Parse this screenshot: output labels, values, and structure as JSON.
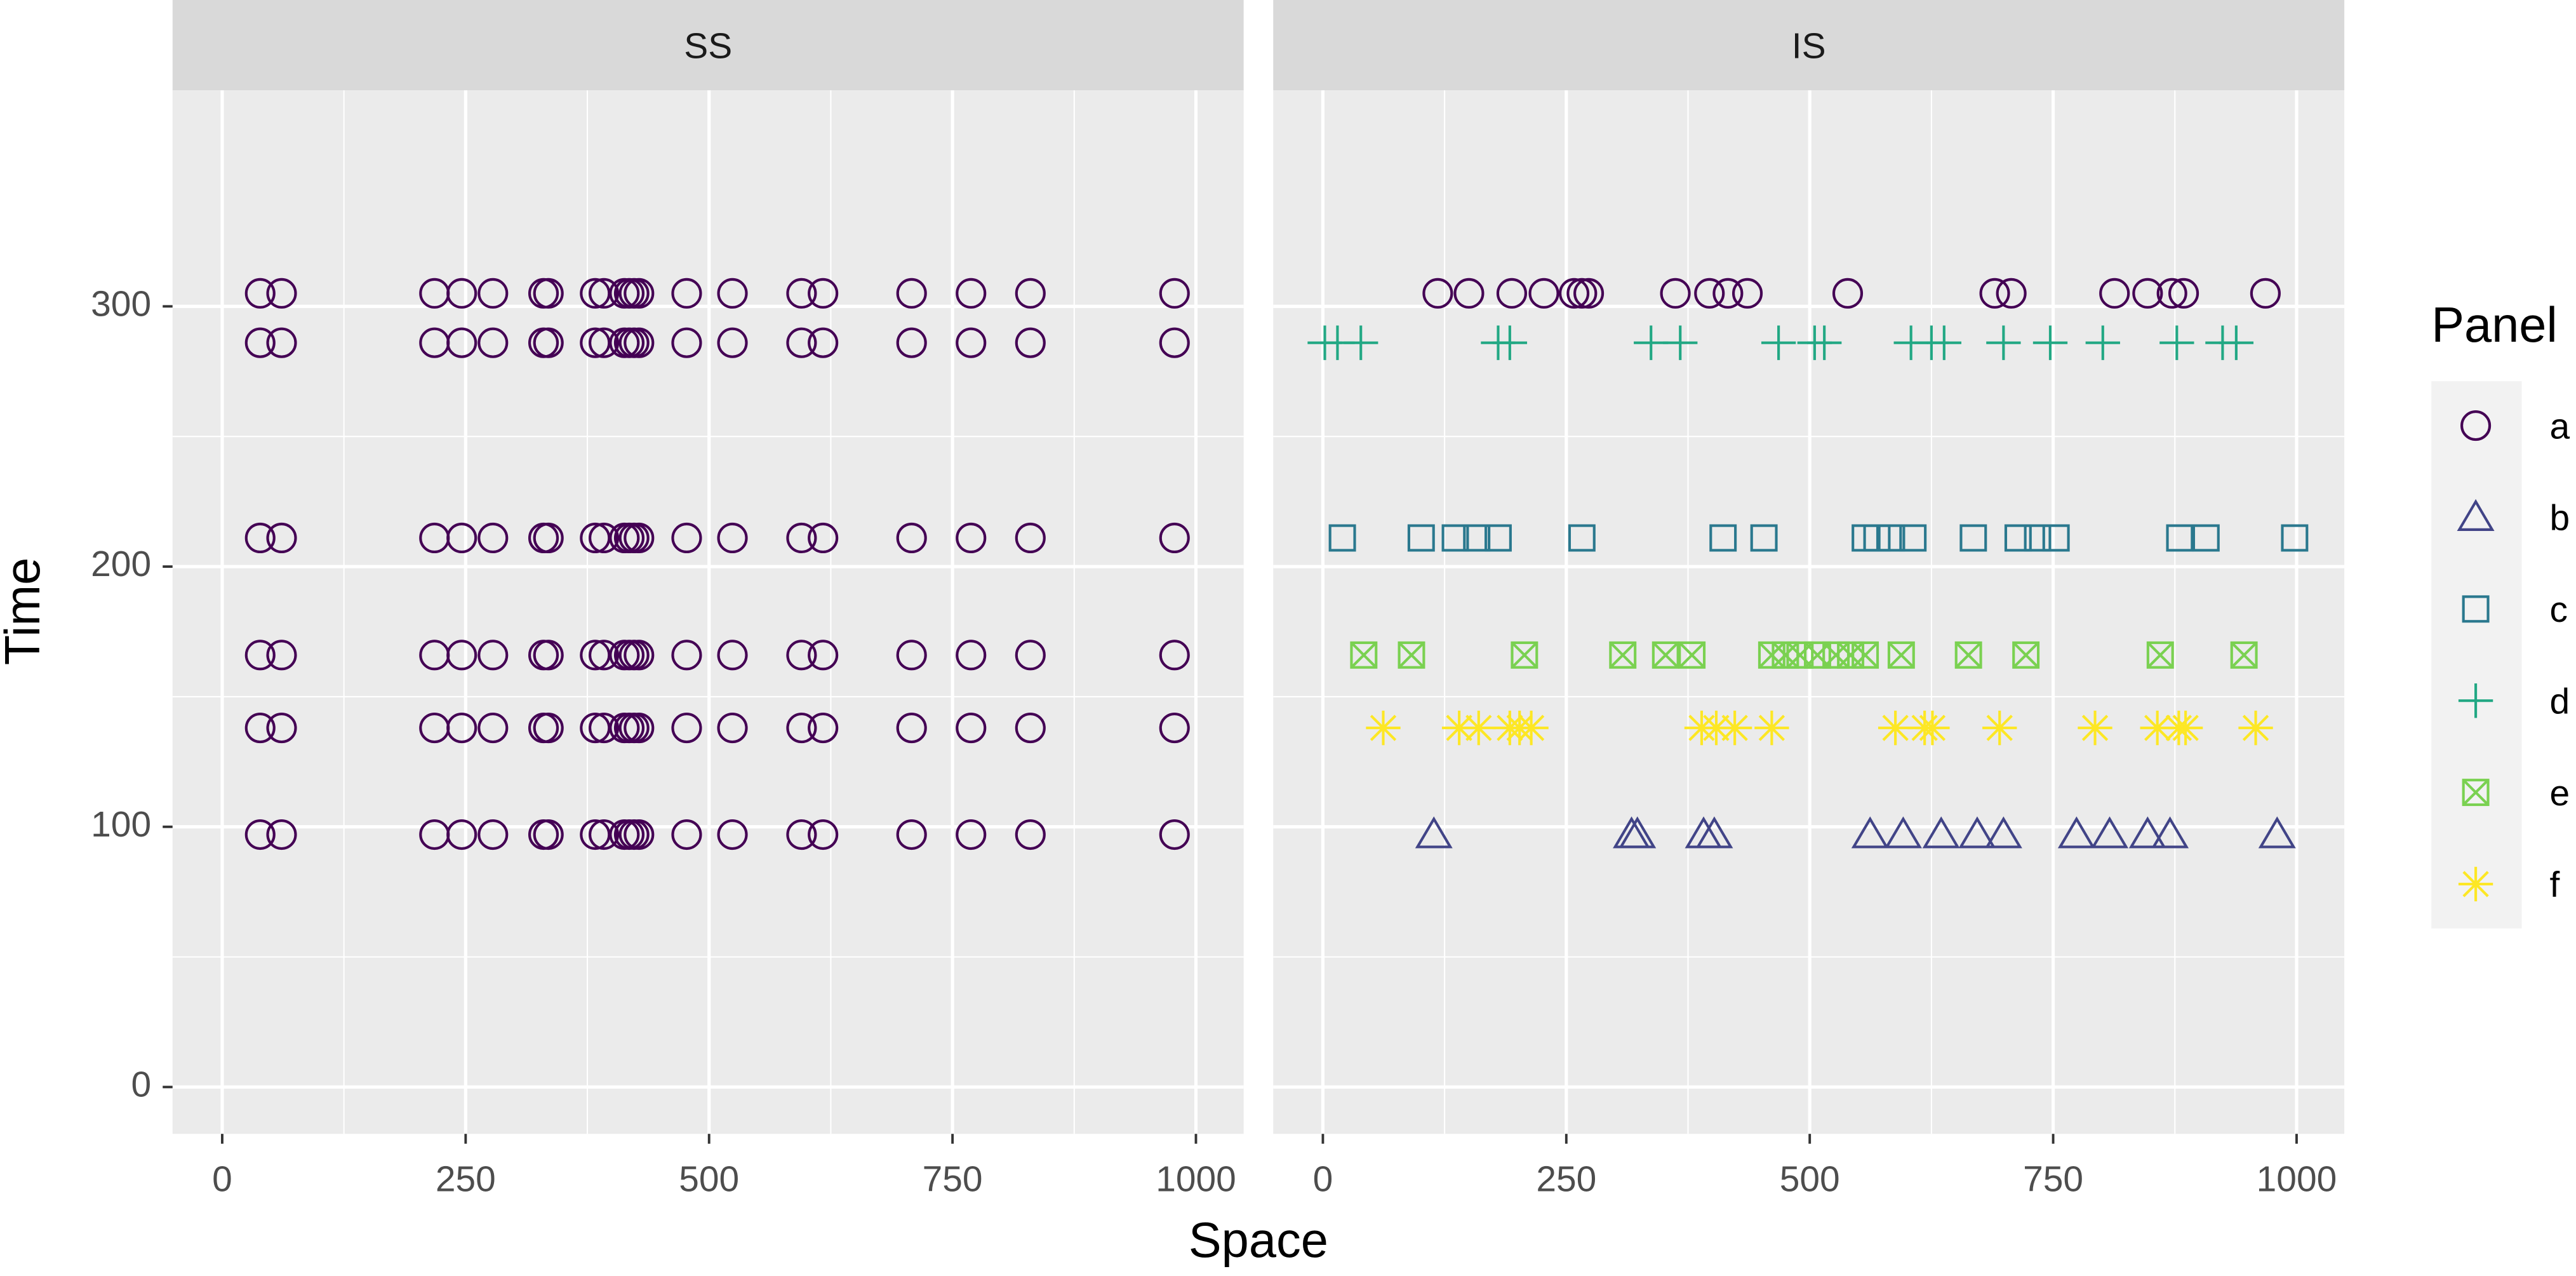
{
  "chart_data": {
    "type": "scatter",
    "x_label": "Space",
    "y_label": "Time",
    "xlim": [
      -51,
      1049
    ],
    "ylim": [
      -18,
      383
    ],
    "xticks": [
      0,
      250,
      500,
      750,
      1000
    ],
    "yticks": [
      0,
      100,
      200,
      300
    ],
    "grid": true,
    "legend_title": "Panel",
    "legend_position": "right",
    "panels": [
      {
        "title": "SS",
        "series": [
          {
            "name": "a",
            "color": "#440154",
            "shape": "circle",
            "x": [
              39,
              61,
              218,
              246,
              278,
              330,
              335,
              383,
              392,
              413,
              418,
              423,
              428,
              477,
              524,
              595,
              617,
              708,
              769,
              830,
              978,
              39,
              61,
              218,
              246,
              278,
              330,
              335,
              383,
              392,
              413,
              418,
              423,
              428,
              477,
              524,
              595,
              617,
              708,
              769,
              830,
              978,
              39,
              61,
              218,
              246,
              278,
              330,
              335,
              383,
              392,
              413,
              418,
              423,
              428,
              477,
              524,
              595,
              617,
              708,
              769,
              830,
              978,
              39,
              61,
              218,
              246,
              278,
              330,
              335,
              383,
              392,
              413,
              418,
              423,
              428,
              477,
              524,
              595,
              617,
              708,
              769,
              830,
              978,
              39,
              61,
              218,
              246,
              278,
              330,
              335,
              383,
              392,
              413,
              418,
              423,
              428,
              477,
              524,
              595,
              617,
              708,
              769,
              830,
              978,
              39,
              61,
              218,
              246,
              278,
              330,
              335,
              383,
              392,
              413,
              418,
              423,
              428,
              477,
              524,
              595,
              617,
              708,
              769,
              830,
              978
            ],
            "values": [
              305,
              305,
              305,
              305,
              305,
              305,
              305,
              305,
              305,
              305,
              305,
              305,
              305,
              305,
              305,
              305,
              305,
              305,
              305,
              305,
              305,
              286,
              286,
              286,
              286,
              286,
              286,
              286,
              286,
              286,
              286,
              286,
              286,
              286,
              286,
              286,
              286,
              286,
              286,
              286,
              286,
              286,
              211,
              211,
              211,
              211,
              211,
              211,
              211,
              211,
              211,
              211,
              211,
              211,
              211,
              211,
              211,
              211,
              211,
              211,
              211,
              211,
              211,
              166,
              166,
              166,
              166,
              166,
              166,
              166,
              166,
              166,
              166,
              166,
              166,
              166,
              166,
              166,
              166,
              166,
              166,
              166,
              166,
              166,
              138,
              138,
              138,
              138,
              138,
              138,
              138,
              138,
              138,
              138,
              138,
              138,
              138,
              138,
              138,
              138,
              138,
              138,
              138,
              138,
              138,
              97,
              97,
              97,
              97,
              97,
              97,
              97,
              97,
              97,
              97,
              97,
              97,
              97,
              97,
              97,
              97,
              97,
              97,
              97,
              97,
              97
            ]
          }
        ]
      },
      {
        "title": "IS",
        "series": [
          {
            "name": "a",
            "color": "#440154",
            "shape": "circle",
            "x": [
              118,
              150,
              194,
              227,
              258,
              266,
              273,
              362,
              397,
              416,
              436,
              539,
              690,
              707,
              813,
              847,
              872,
              884,
              968
            ],
            "values": [
              305,
              305,
              305,
              305,
              305,
              305,
              305,
              305,
              305,
              305,
              305,
              305,
              305,
              305,
              305,
              305,
              305,
              305,
              305
            ]
          },
          {
            "name": "b",
            "color": "#414487",
            "shape": "triangle",
            "x": [
              114,
              317,
              323,
              391,
              402,
              562,
              596,
              635,
              672,
              699,
              774,
              808,
              847,
              870,
              980
            ],
            "values": [
              97,
              97,
              97,
              97,
              97,
              97,
              97,
              97,
              97,
              97,
              97,
              97,
              97,
              97,
              97
            ]
          },
          {
            "name": "c",
            "color": "#2A788E",
            "shape": "square",
            "x": [
              20,
              101,
              136,
              158,
              180,
              266,
              411,
              453,
              557,
              569,
              584,
              606,
              668,
              714,
              734,
              753,
              880,
              907,
              998
            ],
            "values": [
              211,
              211,
              211,
              211,
              211,
              211,
              211,
              211,
              211,
              211,
              211,
              211,
              211,
              211,
              211,
              211,
              211,
              211,
              211
            ]
          },
          {
            "name": "d",
            "color": "#22A884",
            "shape": "plus",
            "x": [
              2,
              15,
              39,
              180,
              192,
              337,
              367,
              468,
              505,
              515,
              604,
              625,
              638,
              699,
              747,
              801,
              877,
              924,
              938
            ],
            "values": [
              286,
              286,
              286,
              286,
              286,
              286,
              286,
              286,
              286,
              286,
              286,
              286,
              286,
              286,
              286,
              286,
              286,
              286,
              286
            ]
          },
          {
            "name": "e",
            "color": "#7AD151",
            "shape": "boxx",
            "x": [
              42,
              91,
              207,
              308,
              352,
              379,
              461,
              475,
              490,
              508,
              527,
              542,
              557,
              594,
              663,
              722,
              860,
              946
            ],
            "values": [
              166,
              166,
              166,
              166,
              166,
              166,
              166,
              166,
              166,
              166,
              166,
              166,
              166,
              166,
              166,
              166,
              166,
              166
            ]
          },
          {
            "name": "f",
            "color": "#FDE725",
            "shape": "asterisk",
            "x": [
              62,
              140,
              160,
              192,
              202,
              214,
              389,
              404,
              423,
              461,
              588,
              618,
              626,
              695,
              793,
              857,
              879,
              886,
              958
            ],
            "values": [
              138,
              138,
              138,
              138,
              138,
              138,
              138,
              138,
              138,
              138,
              138,
              138,
              138,
              138,
              138,
              138,
              138,
              138,
              138
            ]
          }
        ]
      }
    ]
  }
}
